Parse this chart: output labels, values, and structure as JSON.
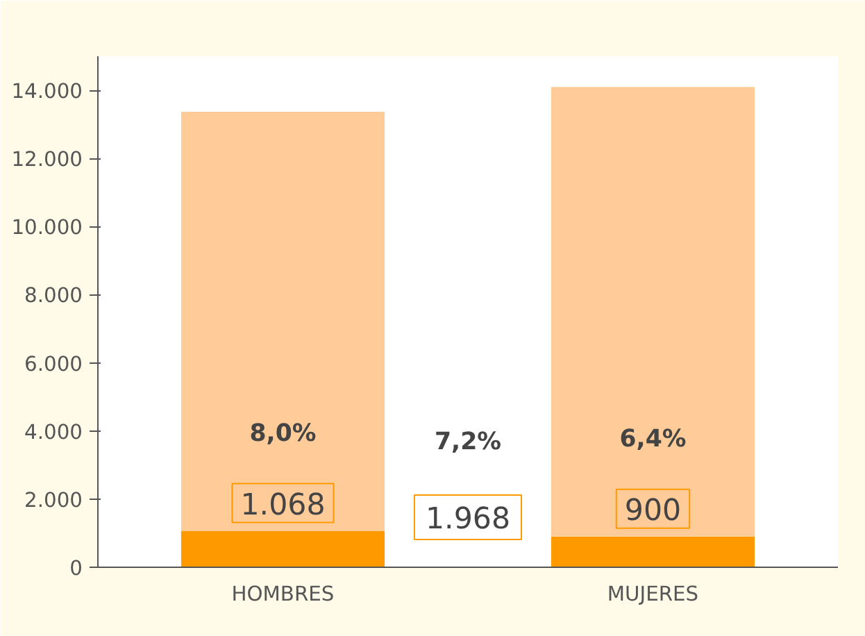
{
  "chart_data": {
    "type": "bar",
    "stacked": true,
    "categories": [
      "HOMBRES",
      "MUJERES"
    ],
    "series": [
      {
        "color": "#ff9900",
        "values": [
          1068,
          900
        ],
        "value_labels": [
          "1.068",
          "900"
        ]
      },
      {
        "color": "#ffcc99",
        "values": [
          12300,
          13200
        ]
      }
    ],
    "ylim": [
      0,
      15000
    ],
    "yticks": [
      0,
      {
        "value": 2000,
        "label": "2.000"
      },
      {
        "value": 4000,
        "label": "4.000"
      },
      {
        "value": 6000,
        "label": "6.000"
      },
      {
        "value": 8000,
        "label": "8.000"
      },
      {
        "value": 10000,
        "label": "10.000"
      },
      {
        "value": 12000,
        "label": "12.000"
      },
      {
        "value": 14000,
        "label": "14.000"
      }
    ],
    "grid": false,
    "annotations": [
      "8,0%",
      "7,2%",
      "6,4%",
      "1.968"
    ]
  }
}
